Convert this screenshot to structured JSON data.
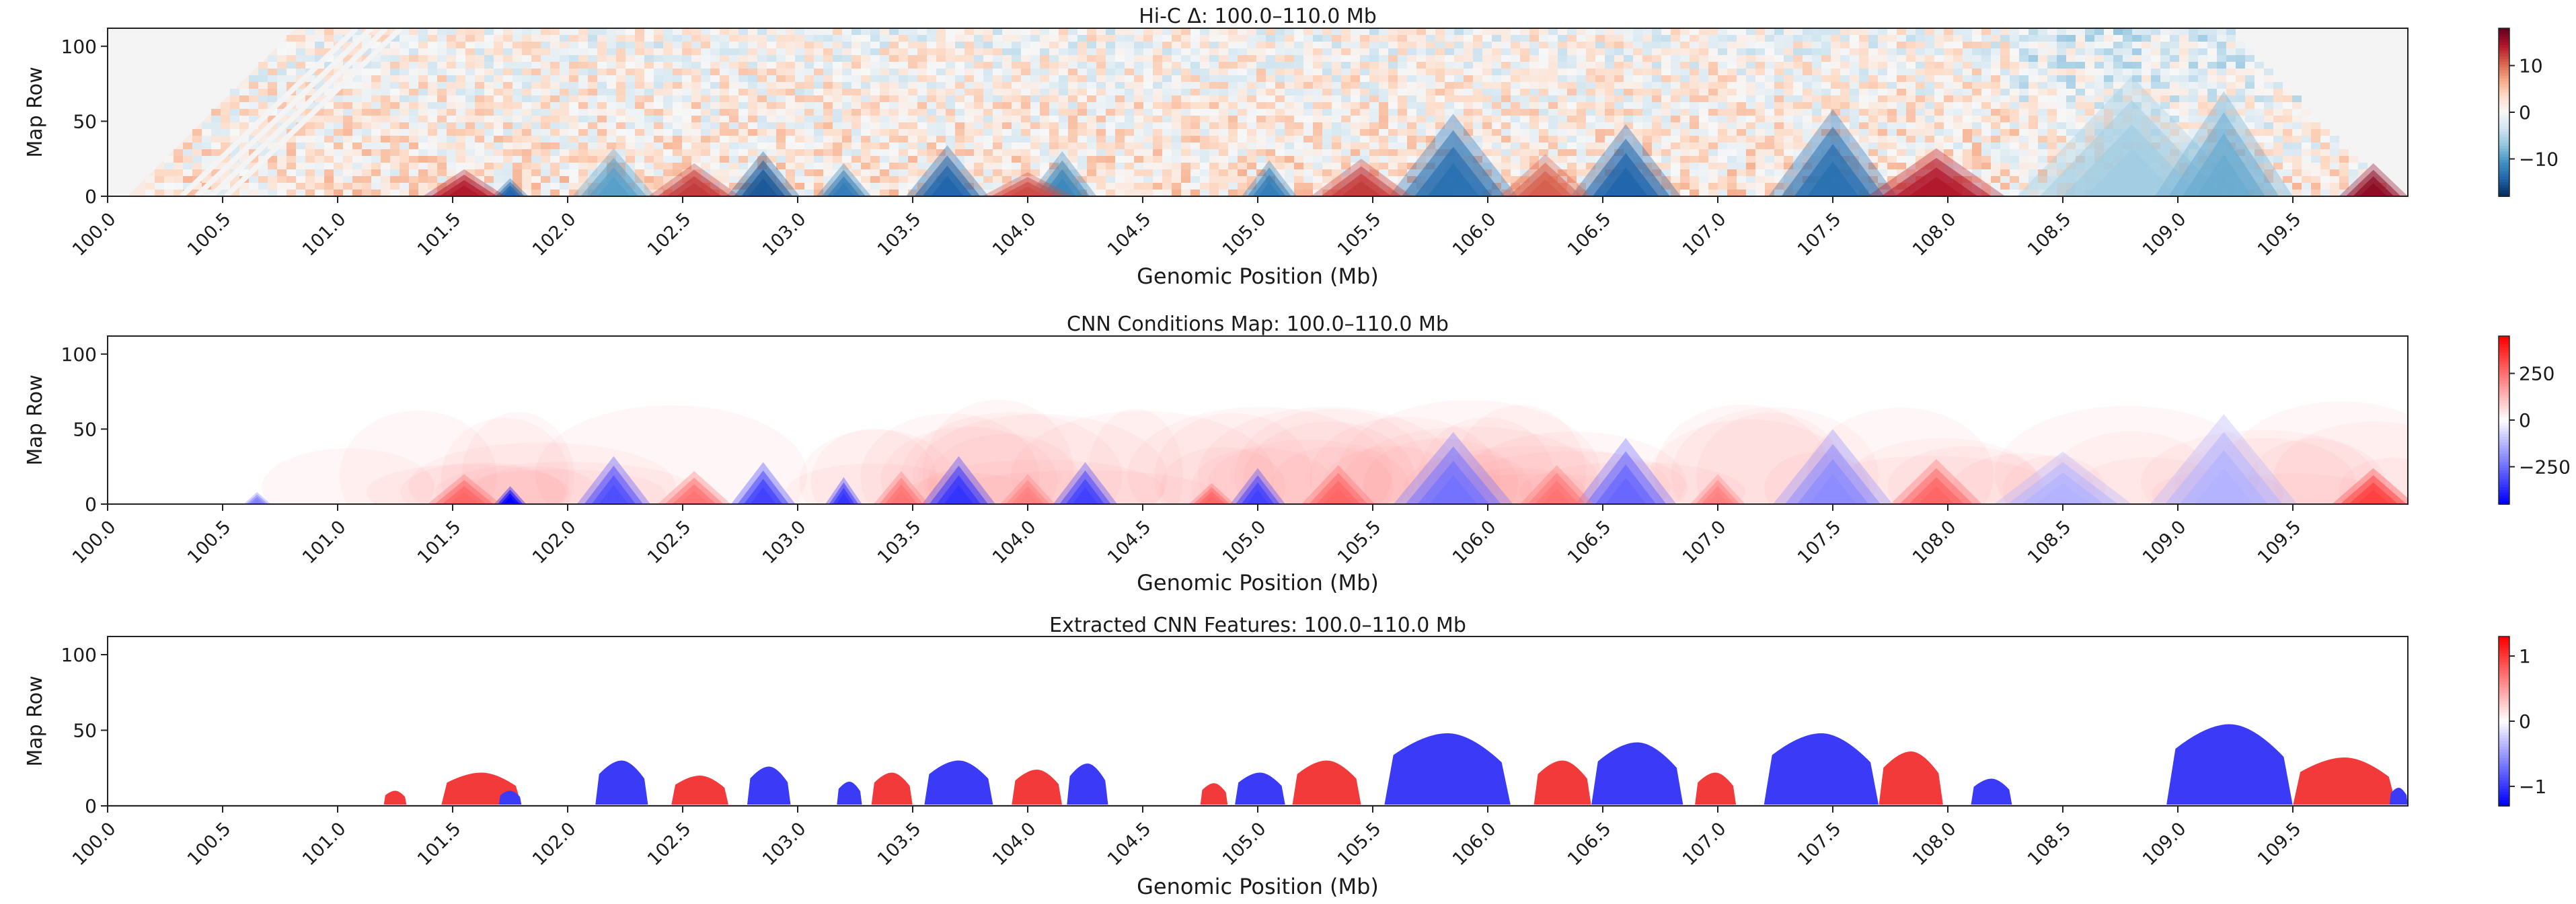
{
  "chart_data": [
    {
      "type": "heatmap",
      "title": "Hi-C Δ: 100.0–110.0 Mb",
      "xlabel": "Genomic Position (Mb)",
      "ylabel": "Map Row",
      "xlim": [
        100.0,
        110.0
      ],
      "ylim": [
        0,
        112
      ],
      "xticks": [
        "100.0",
        "100.5",
        "101.0",
        "101.5",
        "102.0",
        "102.5",
        "103.0",
        "103.5",
        "104.0",
        "104.5",
        "105.0",
        "105.5",
        "106.0",
        "106.5",
        "107.0",
        "107.5",
        "108.0",
        "108.5",
        "109.0",
        "109.5"
      ],
      "yticks": [
        "0",
        "50",
        "100"
      ],
      "colorbar": {
        "colormap": "RdBu_r",
        "range": [
          -18,
          18
        ],
        "ticks": [
          "10",
          "0",
          "−10"
        ],
        "tick_values": [
          10,
          0,
          -10
        ]
      },
      "blobs": [
        {
          "x": 101.75,
          "h": 12,
          "w": 0.08,
          "sign": -1,
          "intensity": 0.8
        },
        {
          "x": 102.2,
          "h": 32,
          "w": 0.18,
          "sign": -1,
          "intensity": 0.55
        },
        {
          "x": 102.85,
          "h": 30,
          "w": 0.16,
          "sign": -1,
          "intensity": 0.85
        },
        {
          "x": 103.2,
          "h": 22,
          "w": 0.12,
          "sign": -1,
          "intensity": 0.7
        },
        {
          "x": 103.65,
          "h": 34,
          "w": 0.18,
          "sign": -1,
          "intensity": 0.8
        },
        {
          "x": 104.15,
          "h": 30,
          "w": 0.15,
          "sign": -1,
          "intensity": 0.65
        },
        {
          "x": 105.05,
          "h": 24,
          "w": 0.12,
          "sign": -1,
          "intensity": 0.7
        },
        {
          "x": 105.85,
          "h": 55,
          "w": 0.28,
          "sign": -1,
          "intensity": 0.75
        },
        {
          "x": 106.6,
          "h": 48,
          "w": 0.24,
          "sign": -1,
          "intensity": 0.8
        },
        {
          "x": 107.5,
          "h": 58,
          "w": 0.28,
          "sign": -1,
          "intensity": 0.75
        },
        {
          "x": 108.8,
          "h": 80,
          "w": 0.5,
          "sign": -1,
          "intensity": 0.35
        },
        {
          "x": 109.2,
          "h": 70,
          "w": 0.3,
          "sign": -1,
          "intensity": 0.5
        },
        {
          "x": 101.55,
          "h": 18,
          "w": 0.18,
          "sign": 1,
          "intensity": 0.8
        },
        {
          "x": 102.55,
          "h": 22,
          "w": 0.2,
          "sign": 1,
          "intensity": 0.7
        },
        {
          "x": 104.0,
          "h": 16,
          "w": 0.2,
          "sign": 1,
          "intensity": 0.65
        },
        {
          "x": 105.45,
          "h": 25,
          "w": 0.22,
          "sign": 1,
          "intensity": 0.7
        },
        {
          "x": 106.25,
          "h": 28,
          "w": 0.2,
          "sign": 1,
          "intensity": 0.6
        },
        {
          "x": 107.95,
          "h": 32,
          "w": 0.3,
          "sign": 1,
          "intensity": 0.8
        },
        {
          "x": 109.85,
          "h": 22,
          "w": 0.15,
          "sign": 1,
          "intensity": 0.9
        }
      ]
    },
    {
      "type": "heatmap",
      "title": "CNN Conditions Map: 100.0–110.0 Mb",
      "xlabel": "Genomic Position (Mb)",
      "ylabel": "Map Row",
      "xlim": [
        100.0,
        110.0
      ],
      "ylim": [
        0,
        112
      ],
      "xticks": [
        "100.0",
        "100.5",
        "101.0",
        "101.5",
        "102.0",
        "102.5",
        "103.0",
        "103.5",
        "104.0",
        "104.5",
        "105.0",
        "105.5",
        "106.0",
        "106.5",
        "107.0",
        "107.5",
        "108.0",
        "108.5",
        "109.0",
        "109.5"
      ],
      "yticks": [
        "0",
        "50",
        "100"
      ],
      "colorbar": {
        "colormap": "bwr",
        "range": [
          -450,
          450
        ],
        "ticks": [
          "250",
          "0",
          "−250"
        ],
        "tick_values": [
          250,
          0,
          -250
        ]
      },
      "blobs": [
        {
          "x": 100.65,
          "h": 8,
          "w": 0.06,
          "sign": -1,
          "intensity": 0.5
        },
        {
          "x": 101.75,
          "h": 12,
          "w": 0.07,
          "sign": -1,
          "intensity": 1.0
        },
        {
          "x": 102.2,
          "h": 32,
          "w": 0.16,
          "sign": -1,
          "intensity": 0.7
        },
        {
          "x": 102.85,
          "h": 28,
          "w": 0.14,
          "sign": -1,
          "intensity": 0.75
        },
        {
          "x": 103.2,
          "h": 18,
          "w": 0.08,
          "sign": -1,
          "intensity": 0.8
        },
        {
          "x": 103.7,
          "h": 32,
          "w": 0.16,
          "sign": -1,
          "intensity": 0.8
        },
        {
          "x": 104.25,
          "h": 28,
          "w": 0.14,
          "sign": -1,
          "intensity": 0.75
        },
        {
          "x": 105.0,
          "h": 24,
          "w": 0.12,
          "sign": -1,
          "intensity": 0.75
        },
        {
          "x": 105.85,
          "h": 48,
          "w": 0.26,
          "sign": -1,
          "intensity": 0.55
        },
        {
          "x": 106.6,
          "h": 44,
          "w": 0.22,
          "sign": -1,
          "intensity": 0.6
        },
        {
          "x": 107.5,
          "h": 50,
          "w": 0.26,
          "sign": -1,
          "intensity": 0.45
        },
        {
          "x": 108.5,
          "h": 35,
          "w": 0.3,
          "sign": -1,
          "intensity": 0.3
        },
        {
          "x": 109.2,
          "h": 60,
          "w": 0.32,
          "sign": -1,
          "intensity": 0.3
        },
        {
          "x": 101.55,
          "h": 20,
          "w": 0.16,
          "sign": 1,
          "intensity": 0.6
        },
        {
          "x": 102.55,
          "h": 22,
          "w": 0.16,
          "sign": 1,
          "intensity": 0.55
        },
        {
          "x": 103.45,
          "h": 22,
          "w": 0.12,
          "sign": 1,
          "intensity": 0.55
        },
        {
          "x": 104.0,
          "h": 20,
          "w": 0.12,
          "sign": 1,
          "intensity": 0.5
        },
        {
          "x": 104.8,
          "h": 14,
          "w": 0.1,
          "sign": 1,
          "intensity": 0.6
        },
        {
          "x": 105.35,
          "h": 26,
          "w": 0.16,
          "sign": 1,
          "intensity": 0.6
        },
        {
          "x": 106.3,
          "h": 26,
          "w": 0.16,
          "sign": 1,
          "intensity": 0.55
        },
        {
          "x": 107.0,
          "h": 20,
          "w": 0.12,
          "sign": 1,
          "intensity": 0.5
        },
        {
          "x": 107.95,
          "h": 30,
          "w": 0.2,
          "sign": 1,
          "intensity": 0.6
        },
        {
          "x": 109.85,
          "h": 24,
          "w": 0.18,
          "sign": 1,
          "intensity": 0.75
        }
      ]
    },
    {
      "type": "heatmap",
      "title": "Extracted CNN Features: 100.0–110.0 Mb",
      "xlabel": "Genomic Position (Mb)",
      "ylabel": "Map Row",
      "xlim": [
        100.0,
        110.0
      ],
      "ylim": [
        0,
        112
      ],
      "xticks": [
        "100.0",
        "100.5",
        "101.0",
        "101.5",
        "102.0",
        "102.5",
        "103.0",
        "103.5",
        "104.0",
        "104.5",
        "105.0",
        "105.5",
        "106.0",
        "106.5",
        "107.0",
        "107.5",
        "108.0",
        "108.5",
        "109.0",
        "109.5"
      ],
      "yticks": [
        "0",
        "50",
        "100"
      ],
      "colorbar": {
        "colormap": "bwr",
        "range": [
          -1.3,
          1.3
        ],
        "ticks": [
          "1",
          "0",
          "−1"
        ],
        "tick_values": [
          1,
          0,
          -1
        ]
      },
      "features": [
        {
          "x0": 101.2,
          "x1": 101.3,
          "h": 10,
          "sign": 1
        },
        {
          "x0": 101.45,
          "x1": 101.8,
          "h": 22,
          "sign": 1
        },
        {
          "x0": 101.7,
          "x1": 101.8,
          "h": 10,
          "sign": -1
        },
        {
          "x0": 102.12,
          "x1": 102.35,
          "h": 30,
          "sign": -1
        },
        {
          "x0": 102.45,
          "x1": 102.7,
          "h": 20,
          "sign": 1
        },
        {
          "x0": 102.78,
          "x1": 102.97,
          "h": 26,
          "sign": -1
        },
        {
          "x0": 103.17,
          "x1": 103.28,
          "h": 16,
          "sign": -1
        },
        {
          "x0": 103.32,
          "x1": 103.5,
          "h": 22,
          "sign": 1
        },
        {
          "x0": 103.55,
          "x1": 103.85,
          "h": 30,
          "sign": -1
        },
        {
          "x0": 103.93,
          "x1": 104.15,
          "h": 24,
          "sign": 1
        },
        {
          "x0": 104.17,
          "x1": 104.35,
          "h": 28,
          "sign": -1
        },
        {
          "x0": 104.75,
          "x1": 104.87,
          "h": 15,
          "sign": 1
        },
        {
          "x0": 104.9,
          "x1": 105.12,
          "h": 22,
          "sign": -1
        },
        {
          "x0": 105.15,
          "x1": 105.45,
          "h": 30,
          "sign": 1
        },
        {
          "x0": 105.55,
          "x1": 106.1,
          "h": 48,
          "sign": -1
        },
        {
          "x0": 106.2,
          "x1": 106.45,
          "h": 30,
          "sign": 1
        },
        {
          "x0": 106.45,
          "x1": 106.85,
          "h": 42,
          "sign": -1
        },
        {
          "x0": 106.9,
          "x1": 107.08,
          "h": 22,
          "sign": 1
        },
        {
          "x0": 107.2,
          "x1": 107.7,
          "h": 48,
          "sign": -1
        },
        {
          "x0": 107.7,
          "x1": 107.98,
          "h": 36,
          "sign": 1
        },
        {
          "x0": 108.1,
          "x1": 108.28,
          "h": 18,
          "sign": -1
        },
        {
          "x0": 108.95,
          "x1": 109.5,
          "h": 54,
          "sign": -1
        },
        {
          "x0": 109.5,
          "x1": 109.95,
          "h": 32,
          "sign": 1
        },
        {
          "x0": 109.92,
          "x1": 110.0,
          "h": 12,
          "sign": -1
        }
      ]
    }
  ]
}
